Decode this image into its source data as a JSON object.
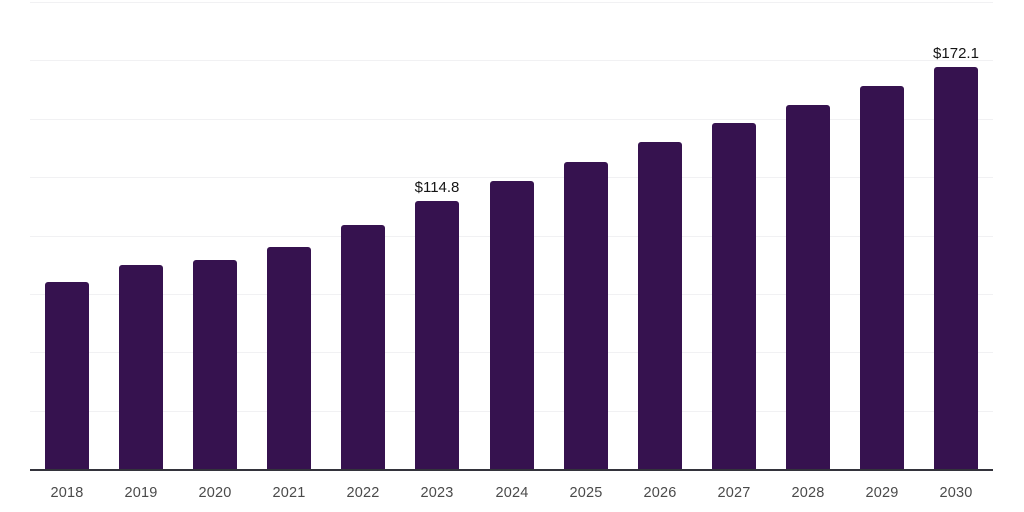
{
  "chart_data": {
    "type": "bar",
    "title": "",
    "xlabel": "",
    "ylabel": "",
    "categories": [
      "2018",
      "2019",
      "2020",
      "2021",
      "2022",
      "2023",
      "2024",
      "2025",
      "2026",
      "2027",
      "2028",
      "2029",
      "2030"
    ],
    "values": [
      79.9,
      87.4,
      89.5,
      94.9,
      104.7,
      114.8,
      123.2,
      131.3,
      140.0,
      148.1,
      156.1,
      164.2,
      172.1
    ],
    "data_labels": {
      "2023": "$114.8",
      "2030": "$172.1"
    },
    "value_prefix": "$",
    "ylim": [
      0,
      200
    ],
    "grid_step": 25,
    "grid": "horizontal",
    "legend": false,
    "y_axis_labels_visible": false
  },
  "colors": {
    "bar": "#36124f",
    "grid": "#f1f1f3",
    "axis": "#33333b",
    "x_label": "#4a4a4a",
    "value_label": "#151515",
    "background": "#ffffff"
  }
}
